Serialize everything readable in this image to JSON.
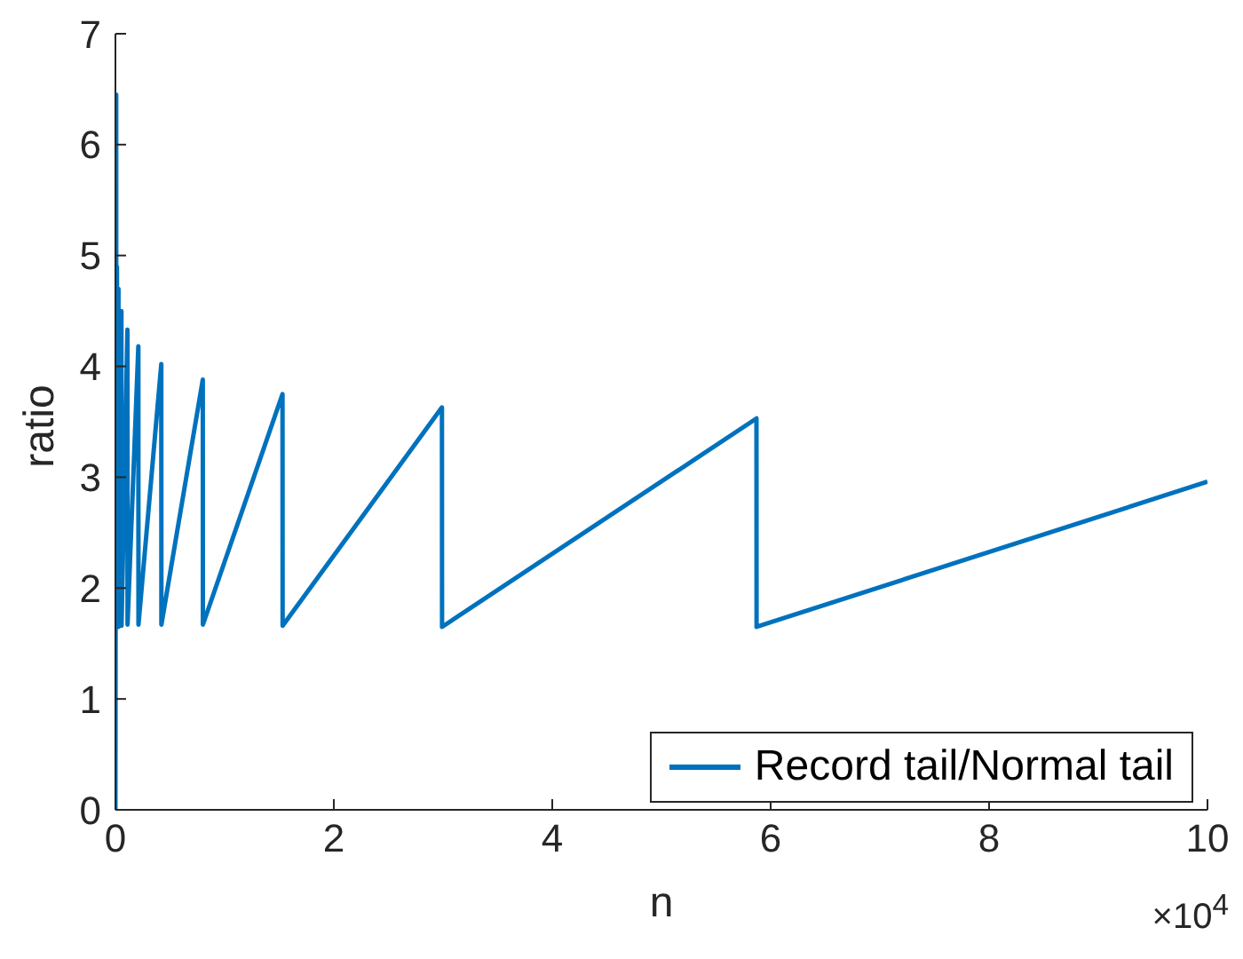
{
  "chart_data": {
    "type": "line",
    "xlabel": "n",
    "ylabel": "ratio",
    "annotations": [
      "×10$^{4}$"
    ],
    "x": [
      0,
      0.007,
      0.008,
      0.014,
      0.015,
      0.028,
      0.029,
      0.055,
      0.056,
      0.11,
      0.111,
      0.21,
      0.211,
      0.42,
      0.421,
      0.8,
      0.801,
      1.53,
      1.531,
      2.99,
      2.991,
      5.87,
      5.871,
      10
    ],
    "series": [
      {
        "name": "Record tail/Normal tail",
        "color": "#0072bd",
        "values": [
          0,
          6.45,
          1.65,
          4.9,
          1.65,
          4.7,
          1.65,
          4.5,
          1.66,
          4.33,
          1.67,
          4.18,
          1.67,
          4.02,
          1.67,
          3.88,
          1.67,
          3.75,
          1.66,
          3.63,
          1.65,
          3.53,
          1.65,
          2.96
        ]
      }
    ],
    "xlim": [
      0,
      10
    ],
    "xticks": [
      0,
      2,
      4,
      6,
      8,
      10
    ],
    "ylim": [
      0,
      7
    ],
    "yticks": [
      0,
      1,
      2,
      3,
      4,
      5,
      6,
      7
    ],
    "legend": "bottom right",
    "marker": "none",
    "line_style": "solid"
  }
}
